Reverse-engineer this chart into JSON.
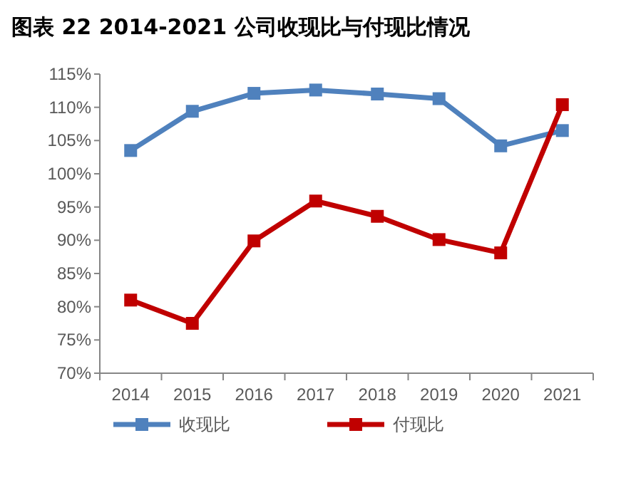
{
  "chart_data": {
    "type": "line",
    "title": "图表 22 2014-2021 公司收现比与付现比情况",
    "categories": [
      "2014",
      "2015",
      "2016",
      "2017",
      "2018",
      "2019",
      "2020",
      "2021"
    ],
    "series": [
      {
        "name": "收现比",
        "color": "#4f81bd",
        "values": [
          103.5,
          109.4,
          112.1,
          112.6,
          112.0,
          111.3,
          104.2,
          106.5
        ]
      },
      {
        "name": "付现比",
        "color": "#c00000",
        "values": [
          81.0,
          77.5,
          89.9,
          95.9,
          93.6,
          90.1,
          88.1,
          110.4
        ]
      }
    ],
    "ylim": [
      70,
      115
    ],
    "yticks": [
      {
        "value": 70,
        "label": "70%"
      },
      {
        "value": 75,
        "label": "75%"
      },
      {
        "value": 80,
        "label": "80%"
      },
      {
        "value": 85,
        "label": "85%"
      },
      {
        "value": 90,
        "label": "90%"
      },
      {
        "value": 95,
        "label": "95%"
      },
      {
        "value": 100,
        "label": "100%"
      },
      {
        "value": 105,
        "label": "105%"
      },
      {
        "value": 110,
        "label": "110%"
      },
      {
        "value": 115,
        "label": "115%"
      }
    ],
    "marker": "square",
    "line_style": "solid",
    "legend": "bottom",
    "grid": false
  }
}
